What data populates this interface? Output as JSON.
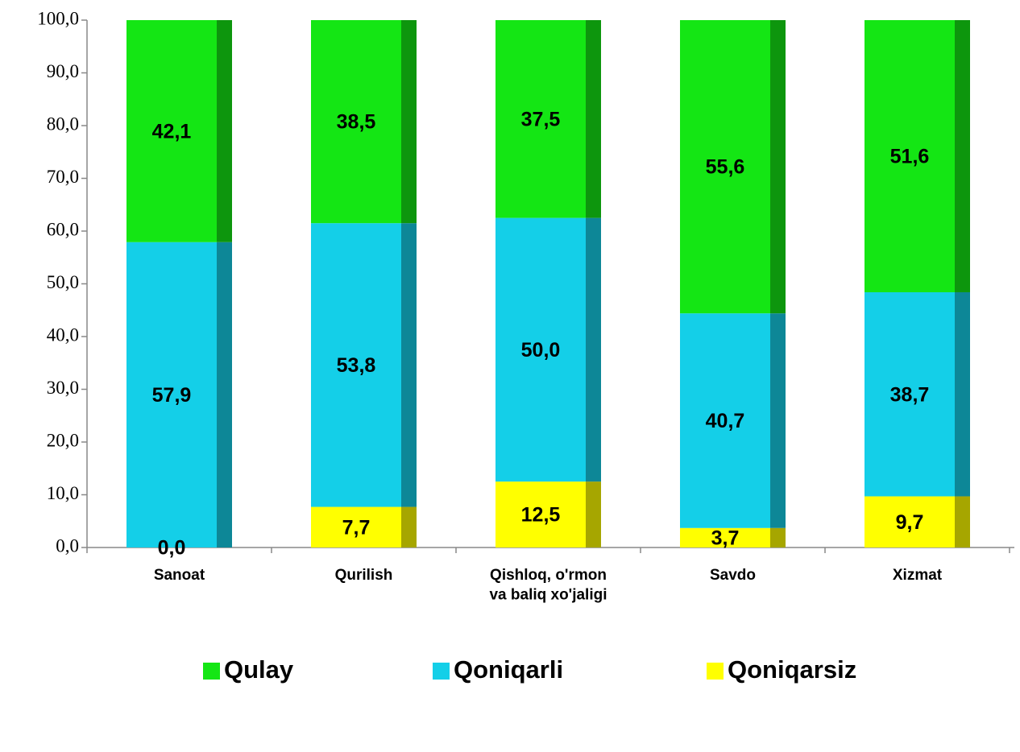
{
  "chart_data": {
    "type": "stacked_bar",
    "categories": [
      "Sanoat",
      "Qurilish",
      "Qishloq, o'rmon\nva baliq xo'jaligi",
      "Savdo",
      "Xizmat"
    ],
    "series": [
      {
        "name": "Qoniqarsiz",
        "color": "#ffff00",
        "values": [
          0.0,
          7.7,
          12.5,
          3.7,
          9.7
        ],
        "value_labels": [
          "0,0",
          "7,7",
          "12,5",
          "3,7",
          "9,7"
        ]
      },
      {
        "name": "Qoniqarli",
        "color": "#14cfe8",
        "values": [
          57.9,
          53.8,
          50.0,
          40.7,
          38.7
        ],
        "value_labels": [
          "57,9",
          "53,8",
          "50,0",
          "40,7",
          "38,7"
        ]
      },
      {
        "name": "Qulay",
        "color": "#14e614",
        "values": [
          42.1,
          38.5,
          37.5,
          55.6,
          51.6
        ],
        "value_labels": [
          "42,1",
          "38,5",
          "37,5",
          "55,6",
          "51,6"
        ]
      }
    ],
    "legend_order": [
      "Qulay",
      "Qoniqarli",
      "Qoniqarsiz"
    ],
    "ylim": [
      0,
      100
    ],
    "yticks": [
      {
        "value": 0,
        "label": "0,0"
      },
      {
        "value": 10,
        "label": "10,0"
      },
      {
        "value": 20,
        "label": "20,0"
      },
      {
        "value": 30,
        "label": "30,0"
      },
      {
        "value": 40,
        "label": "40,0"
      },
      {
        "value": 50,
        "label": "50,0"
      },
      {
        "value": 60,
        "label": "60,0"
      },
      {
        "value": 70,
        "label": "70,0"
      },
      {
        "value": 80,
        "label": "80,0"
      },
      {
        "value": 90,
        "label": "90,0"
      },
      {
        "value": 100,
        "label": "100,0"
      }
    ],
    "grid": false
  }
}
